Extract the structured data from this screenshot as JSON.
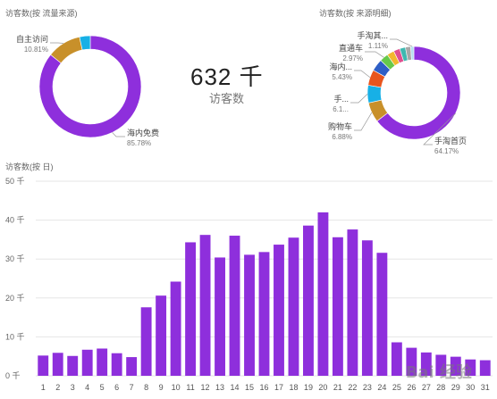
{
  "kpi": {
    "value": "632 千",
    "label": "访客数"
  },
  "watermark": "Bai 经验",
  "chart_data": [
    {
      "type": "pie",
      "title": "访客数(按 流量来源)",
      "slices": [
        {
          "label": "海内免费",
          "value": 85.78,
          "value_label": "85.78%",
          "color": "#8e2fdc"
        },
        {
          "label": "自主访问",
          "value": 10.81,
          "value_label": "10.81%",
          "color": "#c8902a"
        },
        {
          "label": "",
          "value": 3.41,
          "value_label": "",
          "color": "#17b0e6"
        }
      ],
      "callouts": [
        0,
        1
      ]
    },
    {
      "type": "pie",
      "title": "访客数(按 来源明细)",
      "slices": [
        {
          "label": "手淘首页",
          "value": 64.17,
          "value_label": "64.17%",
          "color": "#8e2fdc"
        },
        {
          "label": "购物车",
          "value": 6.88,
          "value_label": "6.88%",
          "color": "#c8902a"
        },
        {
          "label": "手...",
          "value": 6.1,
          "value_label": "6.1...",
          "color": "#17b0e6"
        },
        {
          "label": "海内...",
          "value": 5.43,
          "value_label": "5.43%",
          "color": "#e8551e"
        },
        {
          "label": "",
          "value": 4.2,
          "value_label": "",
          "color": "#2f5fc6"
        },
        {
          "label": "直通车",
          "value": 2.97,
          "value_label": "2.97%",
          "color": "#66c94a"
        },
        {
          "label": "",
          "value": 2.5,
          "value_label": "",
          "color": "#f2b72d"
        },
        {
          "label": "",
          "value": 2.2,
          "value_label": "",
          "color": "#e04f8f"
        },
        {
          "label": "",
          "value": 2.0,
          "value_label": "",
          "color": "#3fb8b0"
        },
        {
          "label": "",
          "value": 1.8,
          "value_label": "",
          "color": "#a7a7a7"
        },
        {
          "label": "手淘其...",
          "value": 1.11,
          "value_label": "1.11%",
          "color": "#b5e0f0"
        }
      ],
      "callouts": [
        0,
        1,
        2,
        3,
        5,
        10
      ]
    },
    {
      "type": "bar",
      "title": "访客数(按 日)",
      "categories": [
        "1",
        "2",
        "3",
        "4",
        "5",
        "6",
        "7",
        "8",
        "9",
        "10",
        "11",
        "12",
        "13",
        "14",
        "15",
        "16",
        "17",
        "18",
        "19",
        "20",
        "21",
        "22",
        "23",
        "24",
        "25",
        "26",
        "27",
        "28",
        "29",
        "30",
        "31"
      ],
      "values": [
        5.2,
        5.9,
        5.1,
        6.7,
        7.0,
        5.8,
        4.8,
        17.6,
        20.6,
        24.2,
        34.3,
        36.2,
        30.4,
        36.0,
        31.1,
        31.8,
        33.7,
        35.5,
        38.6,
        42.0,
        35.6,
        37.6,
        34.8,
        31.6,
        8.6,
        7.2,
        6.0,
        5.4,
        4.9,
        4.2,
        4.0
      ],
      "ylim": [
        0,
        50
      ],
      "yticks": [
        0,
        10,
        20,
        30,
        40,
        50
      ],
      "ytick_labels": [
        "0 千",
        "10 千",
        "20 千",
        "30 千",
        "40 千",
        "50 千"
      ],
      "bar_color": "#8e2fdc",
      "grid": true
    }
  ]
}
